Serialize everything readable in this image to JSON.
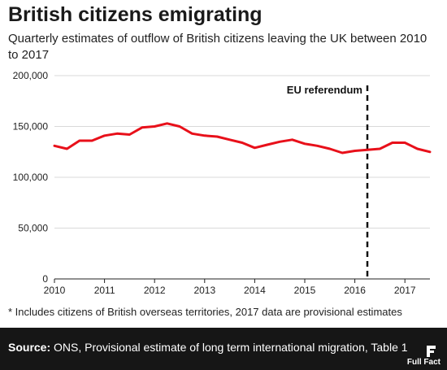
{
  "header": {
    "title": "British citizens emigrating",
    "subtitle": "Quarterly estimates of outflow of British citizens leaving the UK between 2010 to 2017"
  },
  "chart_data": {
    "type": "line",
    "title": "British citizens emigrating",
    "subtitle": "Quarterly estimates of outflow of British citizens leaving the UK between 2010 to 2017",
    "xlabel": "",
    "ylabel": "",
    "xlim": [
      2010,
      2017.5
    ],
    "ylim": [
      0,
      200000
    ],
    "x_ticks": [
      "2010",
      "2011",
      "2012",
      "2013",
      "2014",
      "2015",
      "2016",
      "2017"
    ],
    "y_ticks": [
      "0",
      "50,000",
      "100,000",
      "150,000",
      "200,000"
    ],
    "grid": "horizontal",
    "line_color": "#e8101a",
    "series": [
      {
        "x": [
          2010,
          2010.25,
          2010.5,
          2010.75,
          2011,
          2011.25,
          2011.5,
          2011.75,
          2012,
          2012.25,
          2012.5,
          2012.75,
          2013,
          2013.25,
          2013.5,
          2013.75,
          2014,
          2014.25,
          2014.5,
          2014.75,
          2015,
          2015.25,
          2015.5,
          2015.75,
          2016,
          2016.25,
          2016.5,
          2016.75,
          2017,
          2017.25,
          2017.5
        ],
        "values": [
          131000,
          128000,
          136000,
          136000,
          141000,
          143000,
          142000,
          149000,
          150000,
          153000,
          150000,
          143000,
          141000,
          140000,
          137000,
          134000,
          129000,
          132000,
          135000,
          137000,
          133000,
          131000,
          128000,
          124000,
          126000,
          127000,
          128000,
          134000,
          134000,
          128000,
          125000
        ]
      }
    ],
    "annotations": [
      {
        "x": 2016.25,
        "label": "EU referendum",
        "style": "dashed"
      }
    ]
  },
  "footnote": "* Includes citizens of British overseas territories, 2017 data are provisional estimates",
  "footer": {
    "source_label": "Source:",
    "source_text": " ONS, Provisional estimate of long term international migration, Table 1",
    "brand": "Full Fact"
  }
}
